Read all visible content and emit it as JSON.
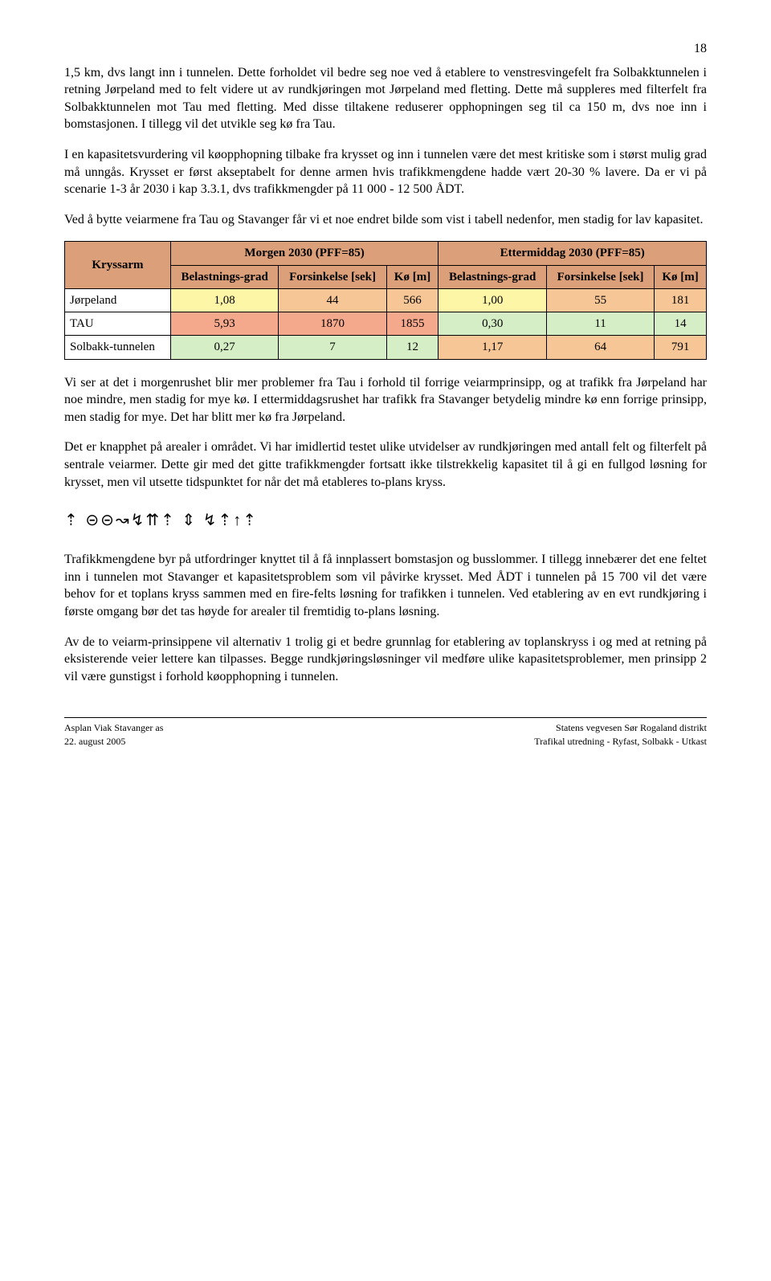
{
  "page_number": "18",
  "para1": "1,5 km, dvs langt inn i tunnelen. Dette forholdet vil bedre seg noe ved å etablere to venstresvingefelt fra Solbakktunnelen i retning Jørpeland med to felt videre ut av rundkjøringen mot Jørpeland med fletting. Dette må suppleres med filterfelt fra Solbakktunnelen mot Tau med fletting. Med disse tiltakene reduserer opphopningen seg til ca 150 m, dvs noe inn i bomstasjonen. I tillegg vil det utvikle seg kø fra Tau.",
  "para2": "I en kapasitetsvurdering vil køopphopning tilbake fra krysset og inn i tunnelen være det mest kritiske som i størst mulig grad må unngås. Krysset er først akseptabelt for denne armen hvis trafikkmengdene hadde vært 20-30 % lavere. Da er vi på scenarie 1-3 år 2030 i kap 3.3.1, dvs trafikkmengder på 11 000 - 12 500 ÅDT.",
  "para3": "Ved å bytte veiarmene fra Tau og Stavanger får vi et noe endret bilde som vist i tabell nedenfor, men stadig for lav kapasitet.",
  "table": {
    "col_kryssarm": "Kryssarm",
    "morgen_header": "Morgen 2030 (PFF=85)",
    "etterm_header": "Ettermiddag 2030 (PFF=85)",
    "sub_belast": "Belastnings-grad",
    "sub_forsink": "Forsinkelse [sek]",
    "sub_ko": "Kø [m]",
    "rows": {
      "r1": {
        "label": "Jørpeland",
        "m_b": "1,08",
        "m_f": "44",
        "m_k": "566",
        "e_b": "1,00",
        "e_f": "55",
        "e_k": "181"
      },
      "r2": {
        "label": "TAU",
        "m_b": "5,93",
        "m_f": "1870",
        "m_k": "1855",
        "e_b": "0,30",
        "e_f": "11",
        "e_k": "14"
      },
      "r3": {
        "label": "Solbakk-tunnelen",
        "m_b": "0,27",
        "m_f": "7",
        "m_k": "12",
        "e_b": "1,17",
        "e_f": "64",
        "e_k": "791"
      }
    },
    "cell_colors": {
      "header_bg": "#db9f7a",
      "green": "#d5eec5",
      "yellow": "#fef6a7",
      "orange": "#f6c696",
      "red": "#f4a88c"
    }
  },
  "para4": "Vi ser at det i morgenrushet blir mer problemer fra Tau i forhold til forrige veiarmprinsipp, og at trafikk fra Jørpeland har noe mindre, men stadig for mye kø. I ettermiddagsrushet har trafikk fra Stavanger betydelig mindre kø enn forrige prinsipp, men stadig for mye. Det har blitt mer kø fra Jørpeland.",
  "para5": "Det er knapphet på arealer i området. Vi har imidlertid testet ulike utvidelser av rundkjøringen med antall felt og filterfelt på sentrale veiarmer. Dette gir med det gitte trafikkmengder fortsatt ikke tilstrekkelig kapasitet til å gi en fullgod løsning for krysset, men vil utsette tidspunktet for når det må etableres to-plans kryss.",
  "diagram_glyphs": "⇡ ⊝⊝↝↯⇈⇡ ⇕ ↯⇡↑⇡",
  "para6": "Trafikkmengdene byr på utfordringer knyttet til å få innplassert bomstasjon og busslommer. I tillegg innebærer det ene feltet inn i tunnelen mot Stavanger et kapasitetsproblem som vil påvirke krysset. Med ÅDT i tunnelen på 15 700 vil det være behov for et toplans kryss sammen med en fire-felts løsning for trafikken i tunnelen. Ved etablering av en evt rundkjøring i første omgang bør det tas høyde for arealer til fremtidig to-plans løsning.",
  "para7": "Av de to veiarm-prinsippene vil alternativ 1 trolig gi et bedre grunnlag for etablering av toplanskryss i og med at retning på eksisterende veier lettere kan tilpasses. Begge rundkjøringsløsninger vil medføre ulike kapasitetsproblemer, men prinsipp 2 vil være gunstigst i forhold køopphopning i tunnelen.",
  "footer": {
    "left1": "Asplan Viak Stavanger as",
    "left2": "22. august 2005",
    "right1": "Statens vegvesen Sør Rogaland distrikt",
    "right2": "Trafikal utredning - Ryfast, Solbakk - Utkast"
  }
}
